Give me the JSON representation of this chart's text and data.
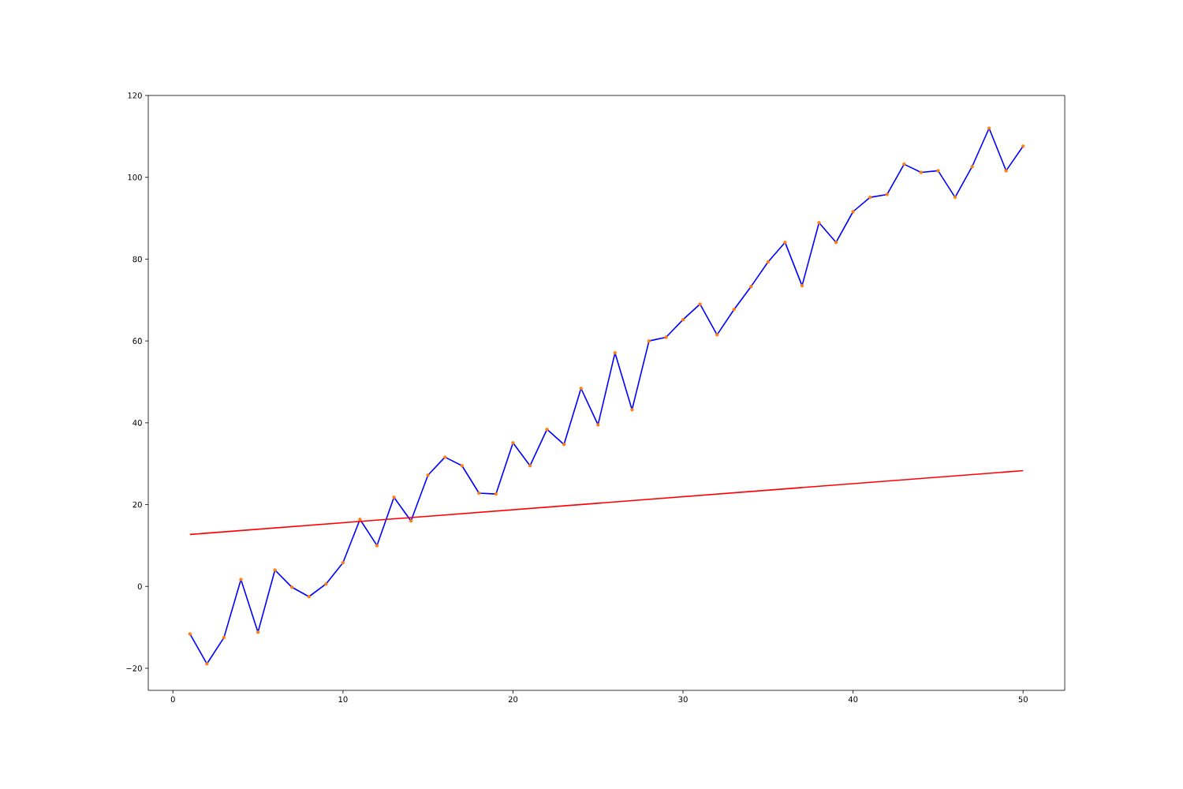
{
  "chart_data": {
    "type": "line",
    "xlim": [
      -1.45,
      52.45
    ],
    "ylim": [
      -25.4,
      120
    ],
    "xticks": [
      0,
      10,
      20,
      30,
      40,
      50
    ],
    "yticks": [
      {
        "value": -20,
        "label": "−20"
      },
      0,
      20,
      40,
      60,
      80,
      100,
      120
    ],
    "grid": false,
    "series": [
      {
        "color": "#0000ff",
        "line_style": "solid",
        "x": [
          1,
          2,
          3,
          4,
          5,
          6,
          7,
          8,
          9,
          10,
          11,
          12,
          13,
          14,
          15,
          16,
          17,
          18,
          19,
          20,
          21,
          22,
          23,
          24,
          25,
          26,
          27,
          28,
          29,
          30,
          31,
          32,
          33,
          34,
          35,
          36,
          37,
          38,
          39,
          40,
          41,
          42,
          43,
          44,
          45,
          46,
          47,
          48,
          49,
          50
        ],
        "values": [
          -11.6,
          -18.9,
          -12.5,
          1.7,
          -11.2,
          4.0,
          -0.2,
          -2.5,
          0.6,
          5.8,
          16.4,
          10.0,
          21.8,
          16.0,
          27.2,
          31.6,
          29.5,
          22.8,
          22.6,
          35.1,
          29.5,
          38.4,
          34.7,
          48.4,
          39.5,
          57.1,
          43.2,
          60.0,
          60.9,
          65.2,
          69.0,
          61.5,
          67.7,
          73.3,
          79.3,
          84.1,
          73.5,
          88.9,
          84.1,
          91.6,
          95.1,
          95.8,
          103.2,
          101.2,
          101.6,
          95.1,
          102.6,
          112.0,
          101.6,
          107.6
        ]
      },
      {
        "type": "scatter",
        "color": "#ff7f0e",
        "marker": "circle",
        "x": [
          1,
          2,
          3,
          4,
          5,
          6,
          7,
          8,
          9,
          10,
          11,
          12,
          13,
          14,
          15,
          16,
          17,
          18,
          19,
          20,
          21,
          22,
          23,
          24,
          25,
          26,
          27,
          28,
          29,
          30,
          31,
          32,
          33,
          34,
          35,
          36,
          37,
          38,
          39,
          40,
          41,
          42,
          43,
          44,
          45,
          46,
          47,
          48,
          49,
          50
        ],
        "values": [
          -11.6,
          -18.9,
          -12.5,
          1.7,
          -11.2,
          4.0,
          -0.2,
          -2.5,
          0.6,
          5.8,
          16.4,
          10.0,
          21.8,
          16.0,
          27.2,
          31.6,
          29.5,
          22.8,
          22.6,
          35.1,
          29.5,
          38.4,
          34.7,
          48.4,
          39.5,
          57.1,
          43.2,
          60.0,
          60.9,
          65.2,
          69.0,
          61.5,
          67.7,
          73.3,
          79.3,
          84.1,
          73.5,
          88.9,
          84.1,
          91.6,
          95.1,
          95.8,
          103.2,
          101.2,
          101.6,
          95.1,
          102.6,
          112.0,
          101.6,
          107.6
        ]
      },
      {
        "type": "line",
        "color": "#ff0000",
        "line_style": "solid",
        "x": [
          1,
          50
        ],
        "values": [
          12.7,
          28.3
        ]
      }
    ]
  }
}
